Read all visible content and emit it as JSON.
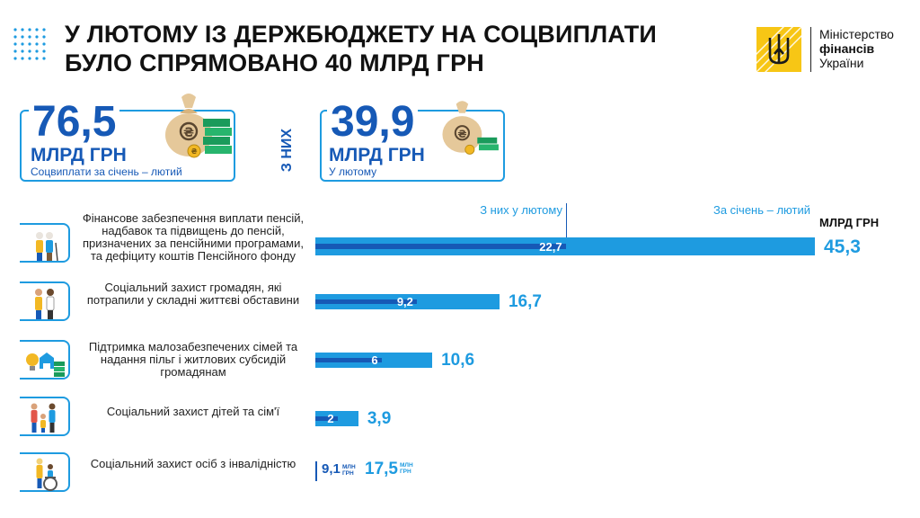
{
  "header": {
    "title_line1": "У ЛЮТОМУ ІЗ ДЕРЖБЮДЖЕТУ НА СОЦВИПЛАТИ",
    "title_line2": "БУЛО СПРЯМОВАНО 40 МЛРД ГРН"
  },
  "logo": {
    "line1": "Міністерство",
    "line2": "фінансів",
    "line3": "України"
  },
  "kpis": {
    "total": {
      "value": "76,5",
      "unit": "МЛРД ГРН",
      "caption": "Соцвиплати за січень – лютий"
    },
    "of_them": "З НИХ",
    "february": {
      "value": "39,9",
      "unit": "МЛРД ГРН",
      "caption": "У лютому"
    }
  },
  "chart_data": {
    "type": "bar",
    "orientation": "horizontal",
    "unit_label": "МЛРД ГРН",
    "legend": {
      "february": "З них у лютому",
      "total": "За січень – лютий"
    },
    "categories": [
      "Фінансове забезпечення виплати пенсій, надбавок та підвищень до пенсій, призначених за пенсійними програмами, та дефіциту коштів Пенсійного фонду",
      "Соціальний захист громадян, які потрапили у складні життєві обставини",
      "Підтримка малозабезпечених сімей та надання пільг і житлових субсидій громадянам",
      "Соціальний захист дітей та сім'ї",
      "Соціальний захист осіб з інвалідністю"
    ],
    "series": [
      {
        "name": "За січень – лютий",
        "values": [
          45.3,
          16.7,
          10.6,
          3.9,
          0.0175
        ],
        "labels": [
          "45,3",
          "16,7",
          "10,6",
          "3,9",
          "17,5"
        ]
      },
      {
        "name": "З них у лютому",
        "values": [
          22.7,
          9.2,
          6,
          2,
          0.0091
        ],
        "labels": [
          "22,7",
          "9,2",
          "6",
          "2",
          "9,1"
        ]
      }
    ],
    "mini_unit": [
      "МЛН",
      "ГРН"
    ],
    "colors": {
      "total": "#1e9be0",
      "february": "#1659b6"
    },
    "xlim": [
      0,
      45.3
    ]
  }
}
